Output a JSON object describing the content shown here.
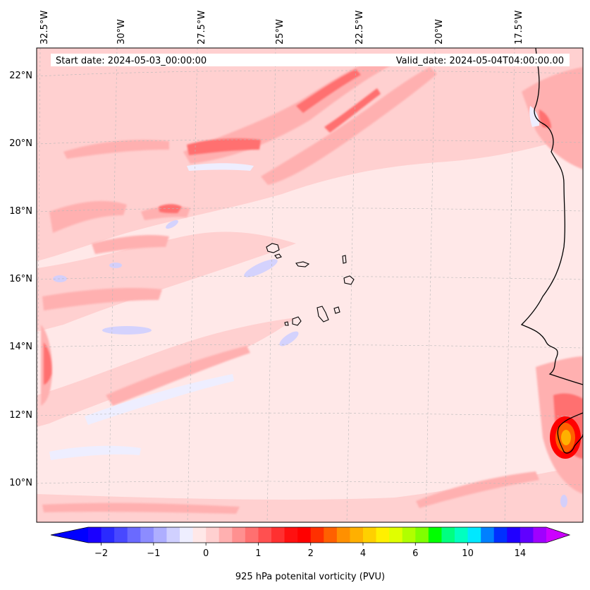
{
  "map": {
    "start_date": "Start date: 2024-05-03_00:00:00",
    "valid_date": "Valid_date: 2024-05-04T04:00:00.00",
    "lon_labels": [
      "32.5°W",
      "30°W",
      "27.5°W",
      "25°W",
      "22.5°W",
      "20°W",
      "17.5°W"
    ],
    "lat_labels": [
      "22°N",
      "20°N",
      "18°N",
      "16°N",
      "14°N",
      "12°N",
      "10°N"
    ],
    "ocean_color": "#ffe8e8",
    "coastline_color": "#000000"
  },
  "colorbar": {
    "label": "925 hPa potenital vorticity (PVU)",
    "tick_labels": [
      "−2",
      "−1",
      "0",
      "1",
      "2",
      "4",
      "6",
      "10",
      "14"
    ],
    "colors": [
      "#1a00ff",
      "#2a2aff",
      "#4848ff",
      "#6a6aff",
      "#8c8cff",
      "#aeaeff",
      "#d0d0ff",
      "#eeeeff",
      "#ffe8e8",
      "#ffd0d0",
      "#ffb0b0",
      "#ff9090",
      "#ff7070",
      "#ff5050",
      "#ff3030",
      "#ff1010",
      "#ff0000",
      "#ff3000",
      "#ff6000",
      "#ff9000",
      "#ffb000",
      "#ffd000",
      "#fff000",
      "#e0ff00",
      "#b0ff00",
      "#80ff00",
      "#00ff00",
      "#00ff80",
      "#00ffc0",
      "#00e8ff",
      "#0080ff",
      "#0030ff",
      "#2000ff",
      "#6000ff",
      "#a000ff"
    ],
    "under_color": "#0000ff",
    "over_color": "#cc00ff"
  }
}
